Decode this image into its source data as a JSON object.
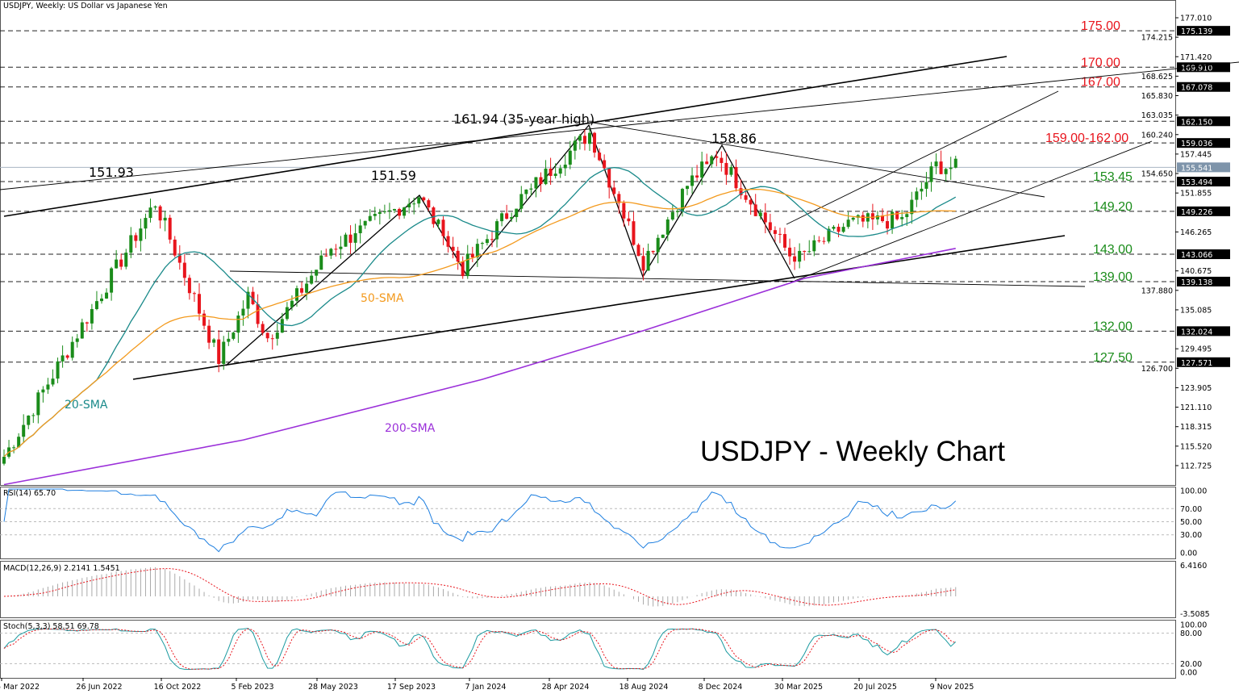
{
  "header": {
    "title": "USDJPY, Weekly:  US Dollar vs Japanese Yen"
  },
  "chart_data": {
    "type": "candlestick",
    "title": "USDJPY - Weekly Chart",
    "symbol": "USDJPY",
    "timeframe": "Weekly",
    "price_axis": {
      "range": [
        110,
        178
      ],
      "ticks": [
        "177.010",
        "174.215",
        "171.420",
        "168.625",
        "165.830",
        "163.035",
        "160.240",
        "157.445",
        "154.650",
        "151.855",
        "146.265",
        "140.675",
        "137.880",
        "135.085",
        "129.495",
        "126.700",
        "123.905",
        "121.110",
        "118.315",
        "115.520",
        "112.725"
      ]
    },
    "current_price": "155.541",
    "horizontal_levels": [
      {
        "value": 175.139,
        "label": "175.139",
        "note": "175.00",
        "color": "#e8141c"
      },
      {
        "value": 169.91,
        "label": "169.910",
        "note": "170.00",
        "color": "#e8141c"
      },
      {
        "value": 167.078,
        "label": "167.078",
        "note": "167.00",
        "color": "#e8141c"
      },
      {
        "value": 162.15,
        "label": "162.150",
        "note": "",
        "color": "#e8141c"
      },
      {
        "value": 159.036,
        "label": "159.036",
        "note": "159.00-162.00",
        "color": "#e8141c"
      },
      {
        "value": 153.494,
        "label": "153.494",
        "note": "153.45",
        "color": "#1a8c1a"
      },
      {
        "value": 149.226,
        "label": "149.226",
        "note": "149.20",
        "color": "#1a8c1a"
      },
      {
        "value": 143.066,
        "label": "143.066",
        "note": "143.00",
        "color": "#1a8c1a"
      },
      {
        "value": 139.138,
        "label": "139.138",
        "note": "139.00",
        "color": "#1a8c1a"
      },
      {
        "value": 132.024,
        "label": "132.024",
        "note": "132.00",
        "color": "#1a8c1a"
      },
      {
        "value": 127.571,
        "label": "127.571",
        "note": "127.50",
        "color": "#1a8c1a"
      }
    ],
    "x_labels": [
      "6 Mar 2022",
      "26 Jun 2022",
      "16 Oct 2022",
      "5 Feb 2023",
      "28 May 2023",
      "17 Sep 2023",
      "7 Jan 2024",
      "28 Apr 2024",
      "18 Aug 2024",
      "8 Dec 2024",
      "30 Mar 2025",
      "20 Jul 2025",
      "9 Nov 2025"
    ],
    "price_path_keypoints": [
      [
        0,
        114
      ],
      [
        31,
        150.5
      ],
      [
        44,
        128
      ],
      [
        50,
        137
      ],
      [
        54,
        131
      ],
      [
        67,
        144
      ],
      [
        85,
        151.5
      ],
      [
        94,
        141
      ],
      [
        105,
        150.5
      ],
      [
        120,
        160.5
      ],
      [
        131,
        142
      ],
      [
        140,
        153
      ],
      [
        146,
        157.5
      ],
      [
        162,
        142
      ],
      [
        173,
        147.5
      ],
      [
        184,
        148
      ],
      [
        191,
        155.8
      ],
      [
        195,
        155.5
      ]
    ],
    "annotations": [
      "161.94 (35-year high)",
      "158.86",
      "151.93",
      "151.59"
    ],
    "sma_labels": {
      "sma20": "20-SMA",
      "sma50": "50-SMA",
      "sma200": "200-SMA"
    },
    "sma200_keypoints": [
      [
        0,
        110
      ],
      [
        49,
        116.4
      ],
      [
        98,
        125.1
      ],
      [
        131,
        132.1
      ],
      [
        164,
        139.6
      ],
      [
        195,
        143.9
      ]
    ],
    "colors": {
      "up": "#1a8c1a",
      "down": "#e8141c",
      "sma20": "#1a8a8a",
      "sma50": "#f39a1e",
      "sma200": "#9b30d9",
      "rsi": "#1e7fe0",
      "signal": "#e8141c"
    },
    "indicators": {
      "rsi": {
        "label": "RSI(14) 65.70",
        "ticks": [
          "100.00",
          "70.00",
          "50.00",
          "30.00",
          "0.00"
        ]
      },
      "macd": {
        "label": "MACD(12,26,9) 2.2141 1.5451",
        "ticks": [
          "6.4160",
          "-3.5085"
        ]
      },
      "stoch": {
        "label": "Stoch(5,3,3) 58.51 69.78",
        "ticks": [
          "100.00",
          "80.00",
          "20.00",
          "0.00"
        ]
      }
    }
  }
}
